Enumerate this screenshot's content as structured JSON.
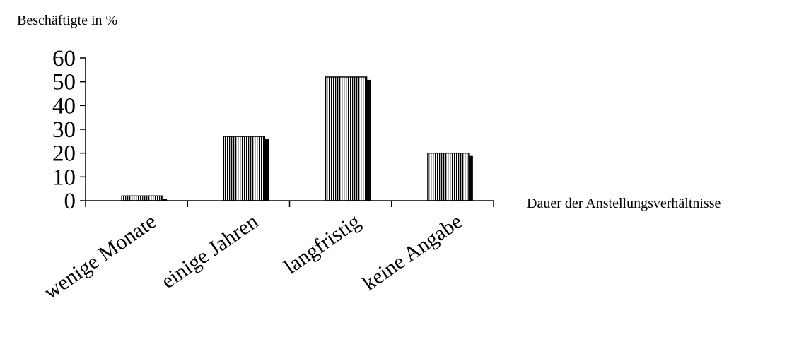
{
  "chart_data": {
    "type": "bar",
    "ylabel": "Beschäftigte in %",
    "xlabel": "Dauer der Anstellungsverhältnisse",
    "categories": [
      "wenige Monate",
      "einige Jahren",
      "langfristig",
      "keine Angabe"
    ],
    "values": [
      2,
      27,
      52,
      20
    ],
    "ylim": [
      0,
      60
    ],
    "yticks": [
      "0",
      "10",
      "20",
      "30",
      "40",
      "50",
      "60"
    ],
    "grid": false,
    "legend": "none",
    "colors": {
      "bar_fill": "#ffffff",
      "bar_stripe": "#000000",
      "bar_shadow": "#000000",
      "axis": "#000000"
    }
  }
}
